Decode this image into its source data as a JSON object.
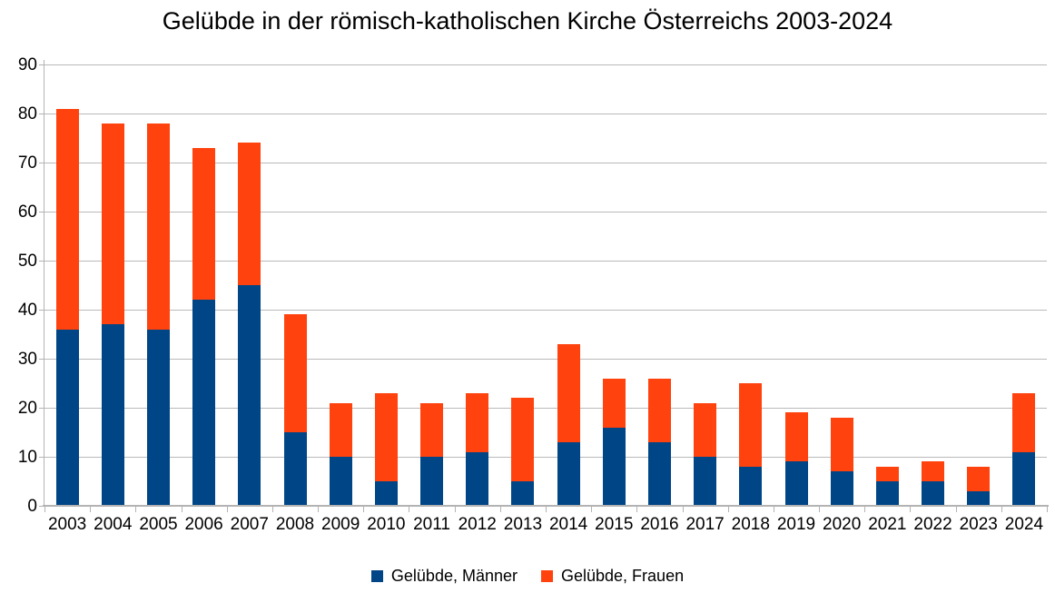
{
  "chart_data": {
    "type": "bar",
    "stacked": true,
    "title": "Gelübde in der römisch-katholischen Kirche Österreichs 2003-2024",
    "categories": [
      "2003",
      "2004",
      "2005",
      "2006",
      "2007",
      "2008",
      "2009",
      "2010",
      "2011",
      "2012",
      "2013",
      "2014",
      "2015",
      "2016",
      "2017",
      "2018",
      "2019",
      "2020",
      "2021",
      "2022",
      "2023",
      "2024"
    ],
    "series": [
      {
        "name": "Gelübde, Männer",
        "color": "#004586",
        "values": [
          36,
          37,
          36,
          42,
          45,
          15,
          10,
          5,
          10,
          11,
          5,
          13,
          16,
          13,
          10,
          8,
          9,
          7,
          5,
          5,
          3,
          11
        ]
      },
      {
        "name": "Gelübde, Frauen",
        "color": "#FF420E",
        "values": [
          45,
          41,
          42,
          31,
          29,
          24,
          11,
          18,
          11,
          12,
          17,
          20,
          10,
          13,
          11,
          17,
          10,
          11,
          3,
          4,
          5,
          12
        ]
      }
    ],
    "totals": [
      81,
      78,
      78,
      73,
      74,
      39,
      21,
      23,
      21,
      23,
      22,
      33,
      26,
      26,
      21,
      25,
      19,
      18,
      8,
      9,
      8,
      23
    ],
    "ylim": [
      0,
      90
    ],
    "y_ticks": [
      0,
      10,
      20,
      30,
      40,
      50,
      60,
      70,
      80,
      90
    ],
    "xlabel": "",
    "ylabel": "",
    "grid": "horizontal",
    "legend_position": "bottom",
    "colors": {
      "background": "#ffffff",
      "grid_line": "#b9b9b9",
      "axis_line": "#b3b3b3",
      "text": "#000000"
    }
  }
}
